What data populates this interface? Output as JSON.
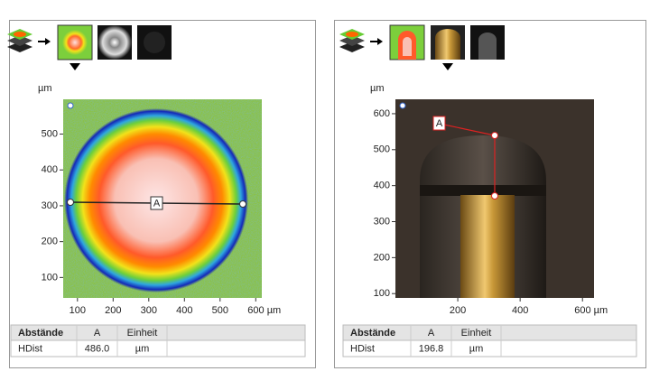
{
  "panels": [
    {
      "y_unit": "µm",
      "xlim": [
        60,
        617
      ],
      "ylim": [
        43,
        597
      ],
      "xticks": [
        100,
        200,
        300,
        400,
        500,
        {
          "value": 600,
          "label": "600 µm"
        }
      ],
      "yticks": [
        100,
        200,
        300,
        400,
        500
      ],
      "marker": "A",
      "table": {
        "header": [
          "Abstände",
          "A",
          "Einheit"
        ],
        "rows": [
          [
            "HDist",
            "486.0",
            "µm"
          ]
        ]
      }
    },
    {
      "y_unit": "µm",
      "xlim": [
        0,
        637
      ],
      "ylim": [
        88,
        640
      ],
      "xticks": [
        200,
        400,
        {
          "value": 600,
          "label": "600 µm"
        }
      ],
      "yticks": [
        100,
        200,
        300,
        400,
        500,
        600
      ],
      "marker": "A",
      "table": {
        "header": [
          "Abstände",
          "A",
          "Einheit"
        ],
        "rows": [
          [
            "HDist",
            "196.8",
            "µm"
          ]
        ]
      }
    }
  ]
}
